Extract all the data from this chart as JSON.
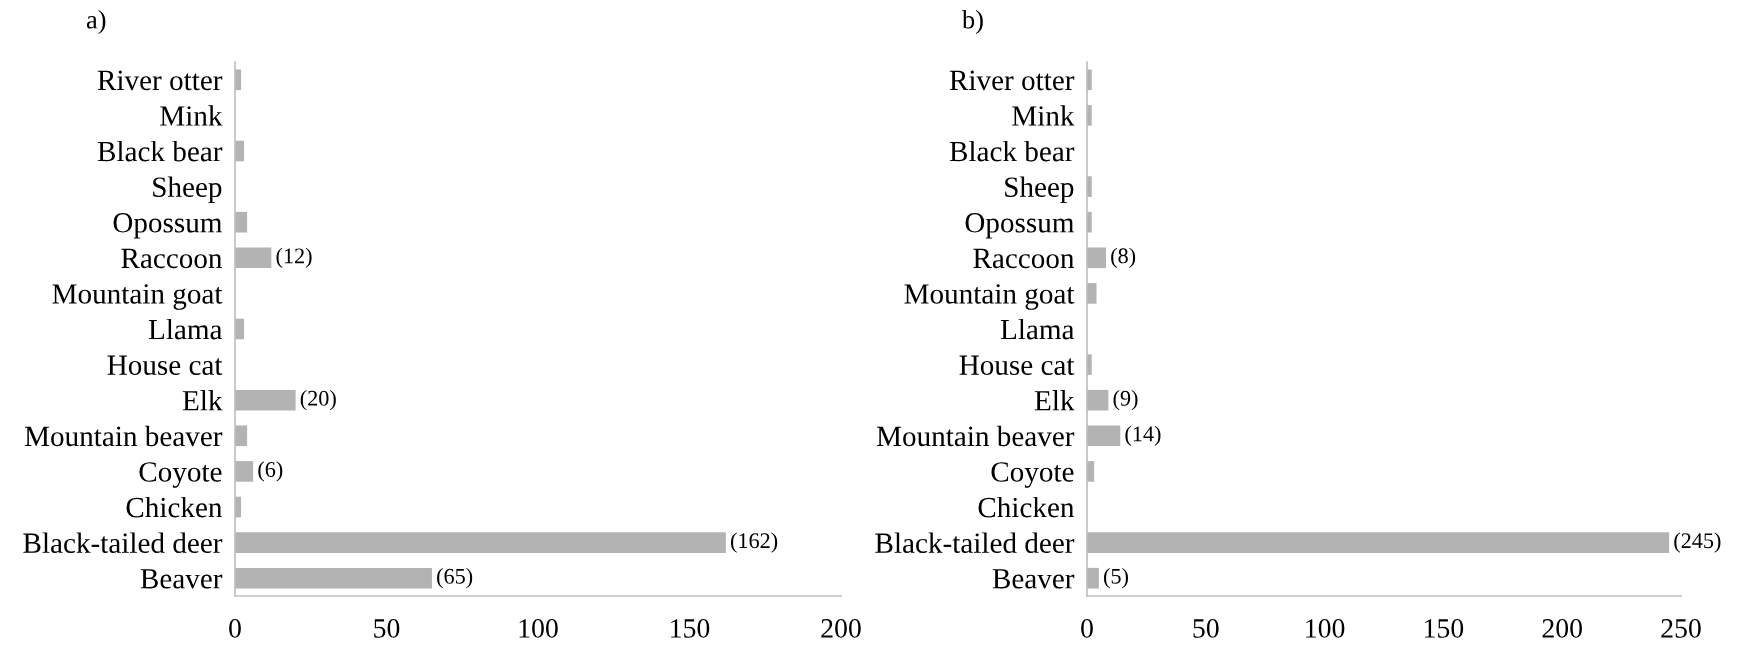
{
  "chart_data": [
    {
      "type": "bar",
      "orientation": "horizontal",
      "title": "a)",
      "color": "#b3b3b3",
      "grid": false,
      "categories": [
        "River otter",
        "Mink",
        "Black bear",
        "Sheep",
        "Opossum",
        "Raccoon",
        "Mountain goat",
        "Llama",
        "House cat",
        "Elk",
        "Mountain beaver",
        "Coyote",
        "Chicken",
        "Black-tailed deer",
        "Beaver"
      ],
      "values": [
        2,
        0,
        3,
        0,
        4,
        12,
        0,
        3,
        0,
        20,
        4,
        6,
        2,
        162,
        65
      ],
      "value_labels": [
        null,
        null,
        null,
        null,
        null,
        "(12)",
        null,
        null,
        null,
        "(20)",
        null,
        "(6)",
        null,
        "(162)",
        "(65)"
      ],
      "xlim": [
        0,
        200
      ],
      "xticks": [
        0,
        50,
        100,
        150,
        200
      ]
    },
    {
      "type": "bar",
      "orientation": "horizontal",
      "title": "b)",
      "color": "#b3b3b3",
      "grid": false,
      "categories": [
        "River otter",
        "Mink",
        "Black bear",
        "Sheep",
        "Opossum",
        "Raccoon",
        "Mountain goat",
        "Llama",
        "House cat",
        "Elk",
        "Mountain beaver",
        "Coyote",
        "Chicken",
        "Black-tailed deer",
        "Beaver"
      ],
      "values": [
        2,
        2,
        0,
        2,
        2,
        8,
        4,
        0,
        2,
        9,
        14,
        3,
        0,
        245,
        5
      ],
      "value_labels": [
        null,
        null,
        null,
        null,
        null,
        "(8)",
        null,
        null,
        null,
        "(9)",
        "(14)",
        null,
        null,
        "(245)",
        "(5)"
      ],
      "xlim": [
        0,
        250
      ],
      "xticks": [
        0,
        50,
        100,
        150,
        200,
        250
      ]
    }
  ]
}
